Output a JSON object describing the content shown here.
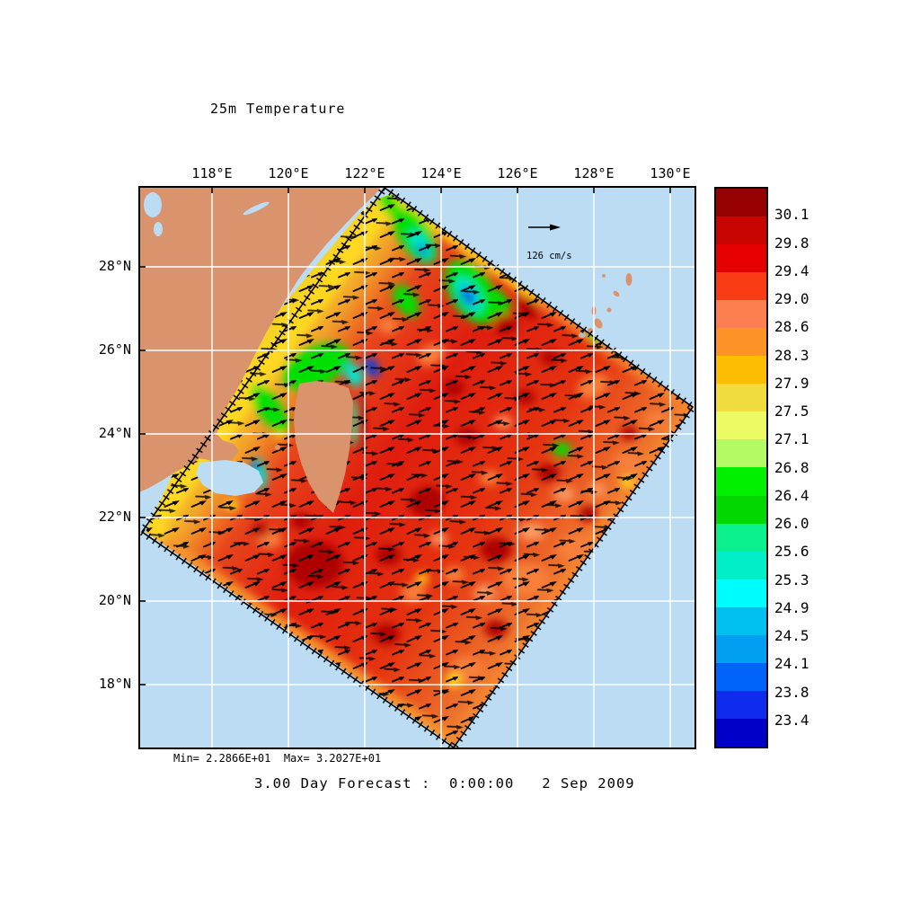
{
  "title": "25m Temperature",
  "map": {
    "x_axis_labels": [
      "118°E",
      "120°E",
      "122°E",
      "124°E",
      "126°E",
      "128°E",
      "130°E"
    ],
    "y_axis_labels": [
      "28°N",
      "26°N",
      "24°N",
      "22°N",
      "20°N",
      "18°N"
    ],
    "vector_scale_label": "126 cm/s",
    "stats_line": "Min= 2.2866E+01  Max= 3.2027E+01",
    "caption": "3.00 Day Forecast :  0:00:00   2 Sep 2009"
  },
  "colorbar": {
    "labels": [
      "30.1",
      "29.8",
      "29.4",
      "29.0",
      "28.6",
      "28.3",
      "27.9",
      "27.5",
      "27.1",
      "26.8",
      "26.4",
      "26.0",
      "25.6",
      "25.3",
      "24.9",
      "24.5",
      "24.1",
      "23.8",
      "23.4"
    ],
    "cell_colors": [
      "#970000",
      "#c90500",
      "#e60000",
      "#fa3c14",
      "#fd7f50",
      "#fd9226",
      "#fdbe02",
      "#f0dc3c",
      "#ecfa64",
      "#b4fa64",
      "#00f000",
      "#00d800",
      "#0af08c",
      "#00eec8",
      "#00fdfd",
      "#00c0f0",
      "#009ff2",
      "#0064fa",
      "#0f2bee",
      "#0000c8"
    ]
  },
  "palette": {
    "ocean": "#bcdcf4",
    "land": "#d9946e",
    "grid_lines": "#ffffff",
    "frame": "#000000",
    "vectors": "#000000"
  },
  "chart_data": {
    "type": "heatmap",
    "title": "25m Temperature",
    "x_ticks": [
      "118°E",
      "120°E",
      "122°E",
      "124°E",
      "126°E",
      "128°E",
      "130°E"
    ],
    "x_tick_values": [
      118,
      120,
      122,
      124,
      126,
      128,
      130
    ],
    "y_ticks": [
      "28°N",
      "26°N",
      "24°N",
      "22°N",
      "20°N",
      "18°N"
    ],
    "y_tick_values": [
      28,
      26,
      24,
      22,
      20,
      18
    ],
    "colorbar_levels": [
      30.1,
      29.8,
      29.4,
      29.0,
      28.6,
      28.3,
      27.9,
      27.5,
      27.1,
      26.8,
      26.4,
      26.0,
      25.6,
      25.3,
      24.9,
      24.5,
      24.1,
      23.8,
      23.4
    ],
    "colorbar_colors": [
      "#970000",
      "#c90500",
      "#e60000",
      "#fa3c14",
      "#fd7f50",
      "#fd9226",
      "#fdbe02",
      "#f0dc3c",
      "#ecfa64",
      "#b4fa64",
      "#00f000",
      "#00d800",
      "#0af08c",
      "#00eec8",
      "#00fdfd",
      "#00c0f0",
      "#009ff2",
      "#0064fa",
      "#0f2bee",
      "#0000c8"
    ],
    "field_min": 22.866,
    "field_max": 32.027,
    "min_label": "Min= 2.2866E+01",
    "max_label": "Max= 3.2027E+01",
    "vector_scale": "126 cm/s",
    "caption": "3.00 Day Forecast :  0:00:00   2 Sep 2009",
    "legend_position": "right",
    "grid": true,
    "overlay": "surface current vectors"
  }
}
